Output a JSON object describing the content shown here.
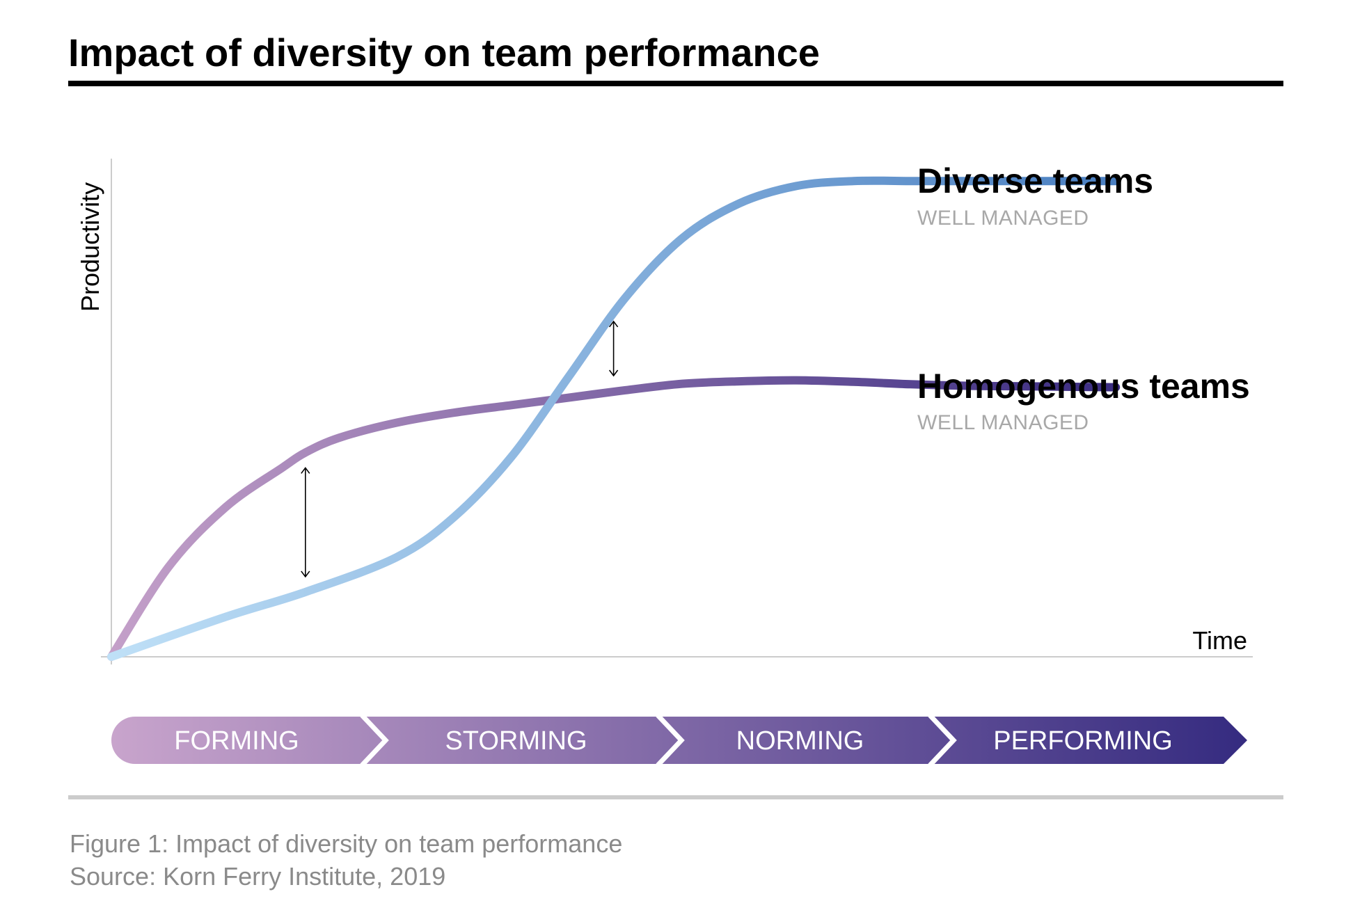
{
  "colors": {
    "diverse_start": "#bfe0f7",
    "diverse_end": "#4a7fc1",
    "homogenous_start": "#c4a0c9",
    "homogenous_end": "#3b2d82",
    "phase_start": "#c8a4cc",
    "phase_end": "#352b80",
    "rule": "#000000",
    "footer_rule": "#cccccc",
    "axis": "#cccccc"
  },
  "chart_data": {
    "type": "line",
    "title": "Impact of diversity on team performance",
    "xlabel": "Time",
    "ylabel": "Productivity",
    "xlim": [
      0,
      100
    ],
    "ylim": [
      0,
      100
    ],
    "grid": false,
    "series": [
      {
        "name": "Diverse teams",
        "subtitle": "WELL MANAGED",
        "x": [
          0,
          10,
          17,
          25,
          30,
          35,
          40,
          45,
          50,
          55,
          60,
          65,
          70,
          73,
          80,
          88
        ],
        "y": [
          0,
          8,
          13,
          20,
          28,
          40,
          56,
          72,
          84,
          91,
          94.5,
          95.5,
          95.5,
          95.5,
          95.5,
          95.5
        ]
      },
      {
        "name": "Homogenous teams",
        "subtitle": "WELL MANAGED",
        "x": [
          0,
          5,
          10,
          15,
          17,
          20,
          25,
          30,
          35,
          40,
          45,
          50,
          55,
          60,
          65,
          70,
          75,
          80,
          88
        ],
        "y": [
          0,
          18,
          30,
          38,
          41,
          44,
          47,
          49,
          50.5,
          52,
          53.5,
          54.8,
          55.3,
          55.5,
          55.2,
          54.7,
          54.4,
          54.3,
          54.1
        ]
      }
    ],
    "phases": [
      "FORMING",
      "STORMING",
      "NORMING",
      "PERFORMING"
    ]
  },
  "caption": {
    "figure": "Figure 1: Impact of diversity on team performance",
    "source": "Source: Korn Ferry Institute, 2019"
  }
}
